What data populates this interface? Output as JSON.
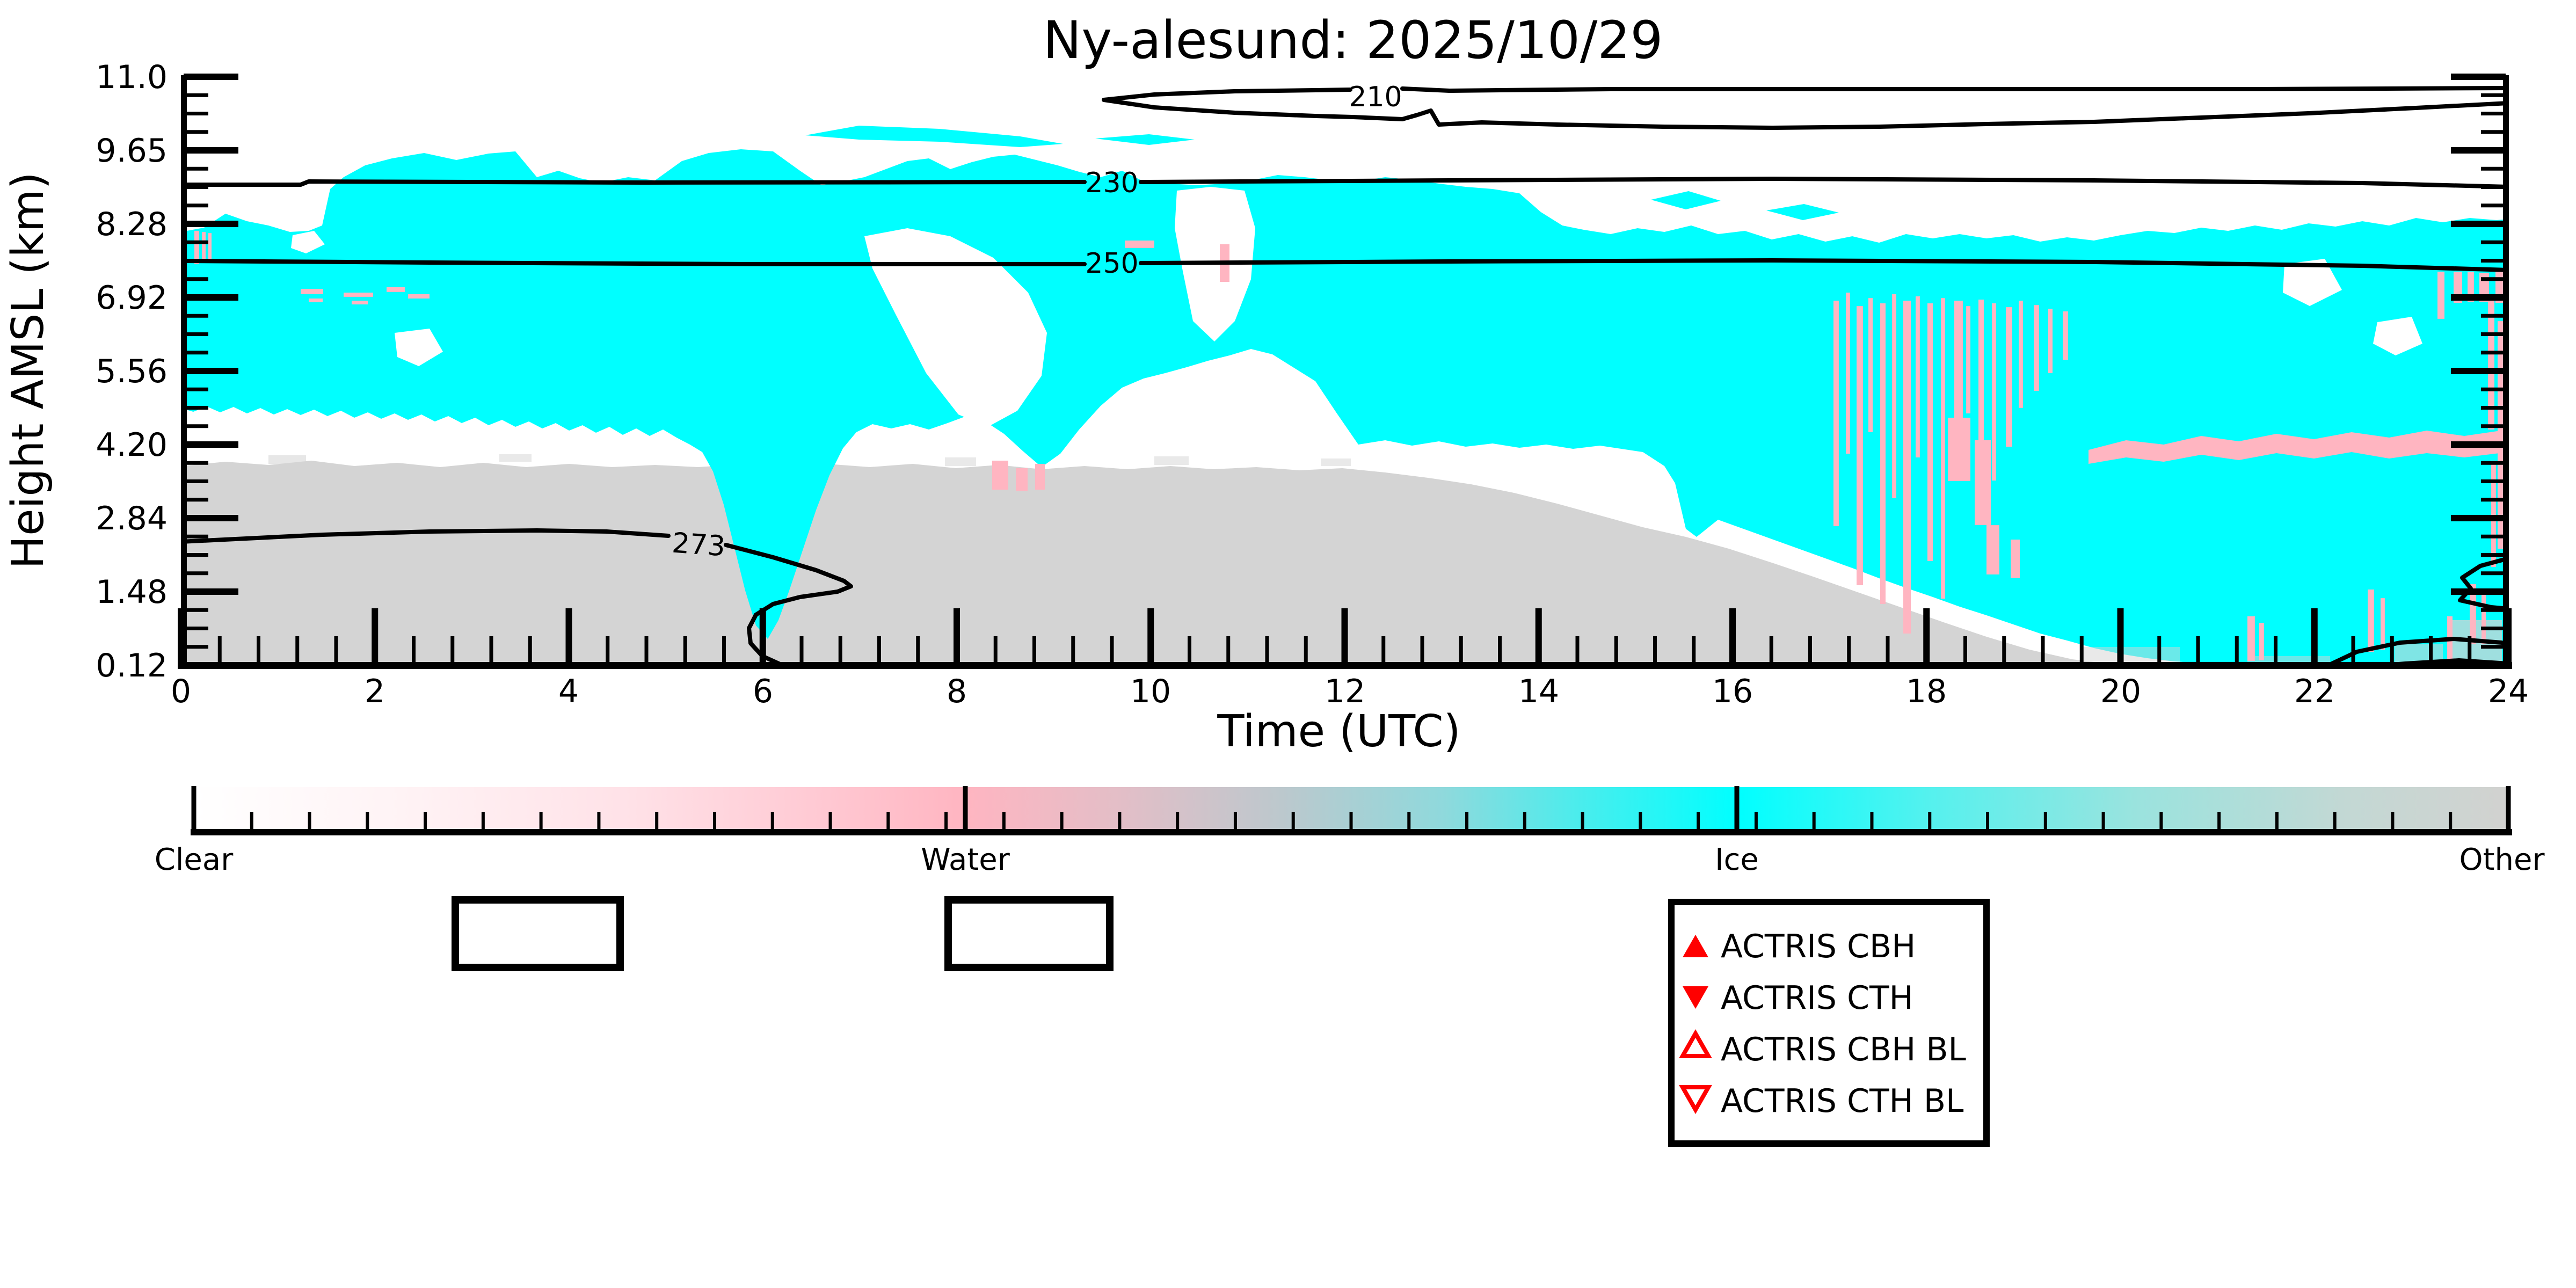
{
  "title": "Ny-alesund: 2025/10/29",
  "plot": {
    "x_axis": {
      "label": "Time (UTC)",
      "ticks": [
        "0",
        "2",
        "4",
        "6",
        "8",
        "10",
        "12",
        "14",
        "16",
        "18",
        "20",
        "22",
        "24"
      ]
    },
    "y_axis": {
      "label": "Height AMSL (km)",
      "ticks": [
        "11.0",
        "9.65",
        "8.28",
        "6.92",
        "5.56",
        "4.20",
        "2.84",
        "1.48",
        "0.12"
      ]
    },
    "contour_labels": {
      "c210": "210",
      "c230": "230",
      "c250": "250",
      "c273": "273"
    }
  },
  "colorbar": {
    "labels": [
      "Clear",
      "Water",
      "Ice",
      "Other"
    ]
  },
  "legend": {
    "items": [
      {
        "marker": "triangle-up-filled",
        "label": "ACTRIS CBH"
      },
      {
        "marker": "triangle-down-filled",
        "label": "ACTRIS CTH"
      },
      {
        "marker": "triangle-up-open",
        "label": "ACTRIS CBH BL"
      },
      {
        "marker": "triangle-down-open",
        "label": "ACTRIS CTH BL"
      }
    ]
  },
  "colors": {
    "clear": "#FFFFFF",
    "water": "#FFB5C1",
    "ice": "#00FFFF",
    "other": "#D4D4D4",
    "marker": "#FF0000"
  },
  "chart_data": {
    "type": "heatmap",
    "title": "Ny-alesund: 2025/10/29",
    "xlabel": "Time (UTC)",
    "ylabel": "Height AMSL (km)",
    "xlim": [
      0,
      24
    ],
    "ylim": [
      0.12,
      11.0
    ],
    "x_ticks": [
      0,
      2,
      4,
      6,
      8,
      10,
      12,
      14,
      16,
      18,
      20,
      22,
      24
    ],
    "y_ticks": [
      0.12,
      1.48,
      2.84,
      4.2,
      5.56,
      6.92,
      8.28,
      9.65,
      11.0
    ],
    "categories": [
      "Clear",
      "Water",
      "Ice",
      "Other"
    ],
    "colormap": {
      "Clear": "#FFFFFF",
      "Water": "#FFB5C1",
      "Ice": "#00FFFF",
      "Other": "#D4D4D4"
    },
    "temperature_contours": [
      {
        "level": 210,
        "approx_height_km": 10.8
      },
      {
        "level": 230,
        "approx_height_km": 9.0
      },
      {
        "level": 250,
        "approx_height_km": 7.5
      },
      {
        "level": 273,
        "approx_height_km": 2.3,
        "note": "dips to the surface near 05-07 UTC; small pocket near the surface 22-24 UTC"
      }
    ],
    "regions": [
      {
        "category": "Other",
        "description": "Gray layer from the surface up to ~3.8 km between 00 and 13 UTC; top sinks steadily after 13 UTC reaching the surface near 21 UTC; gray speckle near surface 21-23 UTC."
      },
      {
        "category": "Ice",
        "description": "Extensive cyan ice cloud ~4.5-9.5 km from 00-15 UTC with clear notches near 06-07 and 10.5 UTC; deep ice tongue to the surface near 05-06.5 UTC; from 16 UTC ice fills most heights below ~8.5 km down to the surface through 24 UTC; thin ice wisps near 10.4 km around 08-11 UTC."
      },
      {
        "category": "Water",
        "description": "Pink water streaks at the left edge near 8 km at 00 UTC, vertical streak columns 17-19.5 UTC, quasi-horizontal liquid band near 4.2 km from 19.5-24 UTC, streaks near right edge 23-24 UTC."
      },
      {
        "category": "Clear",
        "description": "White clear air above the clouds, in the 06-07 UTC wedge, and between cloud base and the gray layer 07-15.5 UTC."
      }
    ],
    "legend_entries": [
      "ACTRIS CBH",
      "ACTRIS CTH",
      "ACTRIS CBH BL",
      "ACTRIS CTH BL"
    ],
    "empty_legend_boxes": 2,
    "grid": false,
    "legend_position": "below plot, right of center"
  }
}
